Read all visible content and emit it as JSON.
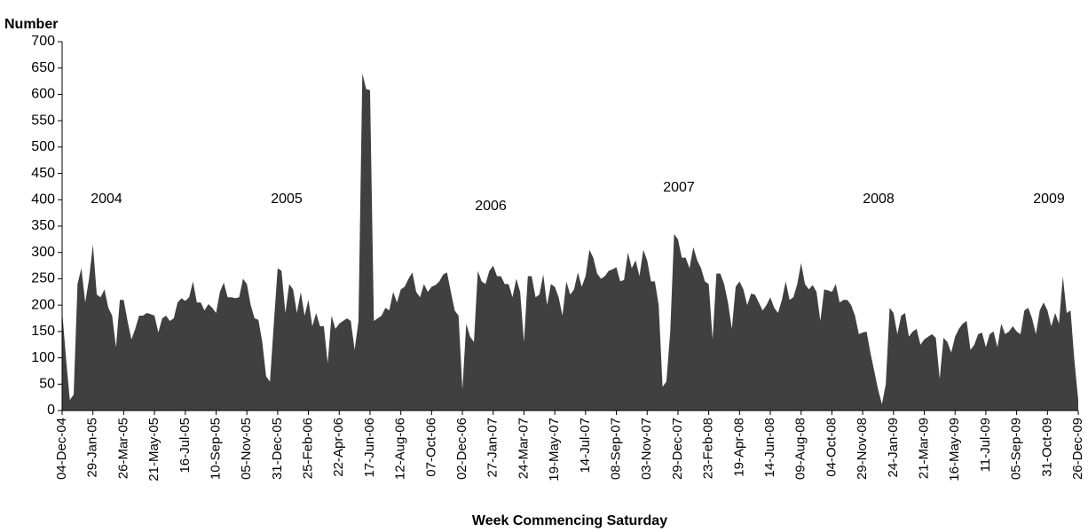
{
  "chart_data": {
    "type": "area",
    "ylabel": "Number",
    "xlabel": "Week Commencing Saturday",
    "annotations": [
      "2004",
      "2005",
      "2006",
      "2007",
      "2008",
      "2009"
    ],
    "color": "#404040",
    "ylim": [
      0,
      700
    ],
    "yticks": [
      0,
      50,
      100,
      150,
      200,
      250,
      300,
      350,
      400,
      450,
      500,
      550,
      600,
      650,
      700
    ],
    "grid": false,
    "categories": [
      "04-Dec-04",
      null,
      null,
      null,
      null,
      null,
      null,
      null,
      "29-Jan-05",
      null,
      null,
      null,
      null,
      null,
      null,
      null,
      "26-Mar-05",
      null,
      null,
      null,
      null,
      null,
      null,
      null,
      "21-May-05",
      null,
      null,
      null,
      null,
      null,
      null,
      null,
      "16-Jul-05",
      null,
      null,
      null,
      null,
      null,
      null,
      null,
      "10-Sep-05",
      null,
      null,
      null,
      null,
      null,
      null,
      null,
      "05-Nov-05",
      null,
      null,
      null,
      null,
      null,
      null,
      null,
      "31-Dec-05",
      null,
      null,
      null,
      null,
      null,
      null,
      null,
      "25-Feb-06",
      null,
      null,
      null,
      null,
      null,
      null,
      null,
      "22-Apr-06",
      null,
      null,
      null,
      null,
      null,
      null,
      null,
      "17-Jun-06",
      null,
      null,
      null,
      null,
      null,
      null,
      null,
      "12-Aug-06",
      null,
      null,
      null,
      null,
      null,
      null,
      null,
      "07-Oct-06",
      null,
      null,
      null,
      null,
      null,
      null,
      null,
      "02-Dec-06",
      null,
      null,
      null,
      null,
      null,
      null,
      null,
      "27-Jan-07",
      null,
      null,
      null,
      null,
      null,
      null,
      null,
      "24-Mar-07",
      null,
      null,
      null,
      null,
      null,
      null,
      null,
      "19-May-07",
      null,
      null,
      null,
      null,
      null,
      null,
      null,
      "14-Jul-07",
      null,
      null,
      null,
      null,
      null,
      null,
      null,
      "08-Sep-07",
      null,
      null,
      null,
      null,
      null,
      null,
      null,
      "03-Nov-07",
      null,
      null,
      null,
      null,
      null,
      null,
      null,
      "29-Dec-07",
      null,
      null,
      null,
      null,
      null,
      null,
      null,
      "23-Feb-08",
      null,
      null,
      null,
      null,
      null,
      null,
      null,
      "19-Apr-08",
      null,
      null,
      null,
      null,
      null,
      null,
      null,
      "14-Jun-08",
      null,
      null,
      null,
      null,
      null,
      null,
      null,
      "09-Aug-08",
      null,
      null,
      null,
      null,
      null,
      null,
      null,
      "04-Oct-08",
      null,
      null,
      null,
      null,
      null,
      null,
      null,
      "29-Nov-08",
      null,
      null,
      null,
      null,
      null,
      null,
      null,
      "24-Jan-09",
      null,
      null,
      null,
      null,
      null,
      null,
      null,
      "21-Mar-09",
      null,
      null,
      null,
      null,
      null,
      null,
      null,
      "16-May-09",
      null,
      null,
      null,
      null,
      null,
      null,
      null,
      "11-Jul-09",
      null,
      null,
      null,
      null,
      null,
      null,
      null,
      "05-Sep-09",
      null,
      null,
      null,
      null,
      null,
      null,
      null,
      "31-Oct-09",
      null,
      null,
      null,
      null,
      null,
      null,
      null,
      "26-Dec-09"
    ],
    "values": [
      190,
      100,
      20,
      30,
      240,
      270,
      205,
      250,
      315,
      220,
      215,
      230,
      195,
      180,
      120,
      210,
      210,
      170,
      135,
      155,
      180,
      180,
      185,
      183,
      180,
      148,
      175,
      180,
      170,
      175,
      205,
      213,
      208,
      215,
      245,
      205,
      205,
      190,
      202,
      195,
      185,
      225,
      243,
      215,
      215,
      213,
      215,
      250,
      240,
      200,
      175,
      172,
      130,
      65,
      55,
      165,
      270,
      265,
      185,
      240,
      230,
      185,
      225,
      180,
      210,
      160,
      185,
      160,
      160,
      90,
      180,
      155,
      165,
      170,
      175,
      170,
      115,
      170,
      640,
      610,
      608,
      170,
      175,
      180,
      195,
      190,
      225,
      205,
      230,
      235,
      250,
      262,
      225,
      215,
      240,
      225,
      235,
      238,
      245,
      258,
      262,
      225,
      190,
      180,
      40,
      165,
      140,
      130,
      265,
      245,
      240,
      265,
      275,
      255,
      255,
      240,
      240,
      215,
      250,
      225,
      130,
      255,
      255,
      215,
      220,
      258,
      200,
      240,
      235,
      215,
      180,
      245,
      220,
      230,
      262,
      235,
      255,
      305,
      290,
      260,
      250,
      255,
      265,
      268,
      272,
      245,
      248,
      300,
      270,
      285,
      255,
      305,
      285,
      245,
      245,
      200,
      45,
      55,
      150,
      335,
      325,
      290,
      290,
      270,
      310,
      285,
      270,
      245,
      240,
      135,
      260,
      260,
      240,
      205,
      155,
      235,
      245,
      230,
      200,
      222,
      220,
      205,
      190,
      200,
      215,
      195,
      185,
      210,
      245,
      210,
      215,
      240,
      280,
      240,
      230,
      238,
      225,
      170,
      230,
      228,
      225,
      240,
      205,
      210,
      210,
      200,
      180,
      145,
      148,
      150,
      110,
      75,
      40,
      12,
      50,
      195,
      185,
      145,
      180,
      185,
      140,
      150,
      155,
      125,
      135,
      140,
      145,
      138,
      60,
      138,
      130,
      110,
      140,
      155,
      165,
      170,
      115,
      125,
      145,
      148,
      120,
      145,
      150,
      120,
      165,
      145,
      150,
      160,
      150,
      145,
      190,
      195,
      175,
      145,
      190,
      205,
      190,
      160,
      185,
      165,
      255,
      185,
      190,
      95,
      20
    ]
  }
}
